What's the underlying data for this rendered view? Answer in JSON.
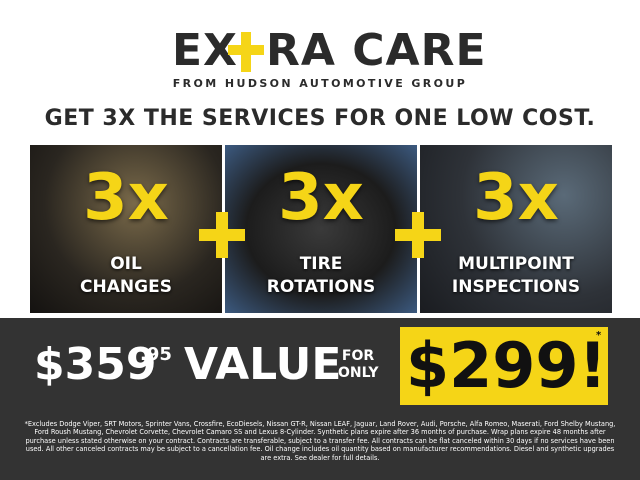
{
  "logo": {
    "left": "EX",
    "right": "RA CARE",
    "tagline": "FROM HUDSON AUTOMOTIVE GROUP"
  },
  "headline": "GET 3X THE SERVICES FOR ONE LOW COST.",
  "services": [
    {
      "count": "3x",
      "label_lines": [
        "OIL",
        "CHANGES"
      ]
    },
    {
      "count": "3x",
      "label_lines": [
        "TIRE",
        "ROTATIONS"
      ]
    },
    {
      "count": "3x",
      "label_lines": [
        "MULTIPOINT",
        "INSPECTIONS"
      ]
    }
  ],
  "price": {
    "value_dollars": "$359",
    "value_cents": ".95",
    "value_word": "VALUE",
    "for_only": [
      "FOR",
      "ONLY"
    ],
    "offer": "$299!",
    "asterisk": "*"
  },
  "disclaimer": "*Excludes Dodge Viper, SRT Motors, Sprinter Vans, Crossfire, EcoDiesels, Nissan GT-R, Nissan LEAF, Jaguar, Land Rover, Audi, Porsche, Alfa Romeo, Maserati, Ford Shelby Mustang, Ford Roush Mustang, Chevrolet Corvette, Chevrolet Camaro SS and Lexus 8-Cylinder. Synthetic plans expire after 36 months of purchase. Wrap plans expire 48 months after purchase unless stated otherwise on your contract. Contracts are transferable, subject to a transfer fee. All contracts can be flat canceled within 30 days if no services have been used. All other canceled contracts may be subject to a cancellation fee. Oil change includes oil quantity based on manufacturer recommendations. Diesel and synthetic upgrades are extra. See dealer for full details."
}
